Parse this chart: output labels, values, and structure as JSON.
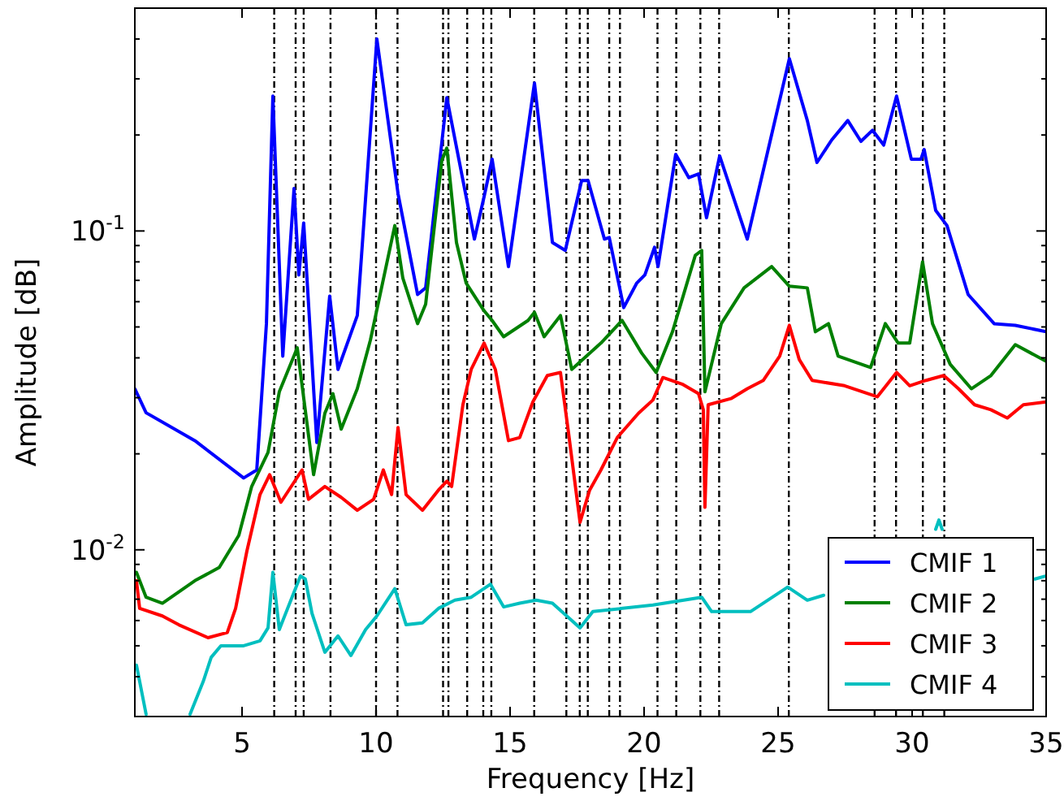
{
  "chart_data": {
    "type": "line",
    "xlabel": "Frequency [Hz]",
    "ylabel": "Amplitude [dB]",
    "log": "y",
    "grid": false,
    "legend": "bottom right",
    "line_style": "solid",
    "marker": "none",
    "xlim": [
      1,
      35
    ],
    "xticks": [
      5,
      10,
      15,
      20,
      25,
      30,
      35
    ],
    "ylim": [
      0.003,
      0.5
    ],
    "yticks": [
      {
        "value": 0.003,
        "label": null
      },
      {
        "value": 0.004,
        "label": null
      },
      {
        "value": 0.005,
        "label": null
      },
      {
        "value": 0.006,
        "label": null
      },
      {
        "value": 0.007,
        "label": null
      },
      {
        "value": 0.008,
        "label": null
      },
      {
        "value": 0.009,
        "label": null
      },
      {
        "value": 0.01,
        "label": "10$^{-2}$"
      },
      {
        "value": 0.02,
        "label": null
      },
      {
        "value": 0.03,
        "label": null
      },
      {
        "value": 0.04,
        "label": null
      },
      {
        "value": 0.05,
        "label": null
      },
      {
        "value": 0.06,
        "label": null
      },
      {
        "value": 0.07,
        "label": null
      },
      {
        "value": 0.08,
        "label": null
      },
      {
        "value": 0.09,
        "label": null
      },
      {
        "value": 0.1,
        "label": "10$^{-1}$"
      },
      {
        "value": 0.2,
        "label": null
      },
      {
        "value": 0.3,
        "label": null
      },
      {
        "value": 0.4,
        "label": null
      },
      {
        "value": 0.5,
        "label": null
      }
    ],
    "ref_lines": [
      {
        "axis": "x",
        "value": 6.2,
        "color": "#000000",
        "line_style": "dashed"
      },
      {
        "axis": "x",
        "value": 7.0,
        "color": "#000000",
        "line_style": "dashed"
      },
      {
        "axis": "x",
        "value": 7.3,
        "color": "#000000",
        "line_style": "dashed"
      },
      {
        "axis": "x",
        "value": 8.3,
        "color": "#000000",
        "line_style": "dashed"
      },
      {
        "axis": "x",
        "value": 10.0,
        "color": "#000000",
        "line_style": "dashed"
      },
      {
        "axis": "x",
        "value": 10.8,
        "color": "#000000",
        "line_style": "dashed"
      },
      {
        "axis": "x",
        "value": 12.5,
        "color": "#000000",
        "line_style": "dashed"
      },
      {
        "axis": "x",
        "value": 12.7,
        "color": "#000000",
        "line_style": "dashed"
      },
      {
        "axis": "x",
        "value": 13.4,
        "color": "#000000",
        "line_style": "dashed"
      },
      {
        "axis": "x",
        "value": 14.0,
        "color": "#000000",
        "line_style": "dashed"
      },
      {
        "axis": "x",
        "value": 14.3,
        "color": "#000000",
        "line_style": "dashed"
      },
      {
        "axis": "x",
        "value": 15.9,
        "color": "#000000",
        "line_style": "dashed"
      },
      {
        "axis": "x",
        "value": 17.1,
        "color": "#000000",
        "line_style": "dashed"
      },
      {
        "axis": "x",
        "value": 17.6,
        "color": "#000000",
        "line_style": "dashed"
      },
      {
        "axis": "x",
        "value": 17.9,
        "color": "#000000",
        "line_style": "dashed"
      },
      {
        "axis": "x",
        "value": 18.7,
        "color": "#000000",
        "line_style": "dashed"
      },
      {
        "axis": "x",
        "value": 19.1,
        "color": "#000000",
        "line_style": "dashed"
      },
      {
        "axis": "x",
        "value": 20.5,
        "color": "#000000",
        "line_style": "dashed"
      },
      {
        "axis": "x",
        "value": 21.2,
        "color": "#000000",
        "line_style": "dashed"
      },
      {
        "axis": "x",
        "value": 22.1,
        "color": "#000000",
        "line_style": "dashed"
      },
      {
        "axis": "x",
        "value": 22.8,
        "color": "#000000",
        "line_style": "dashed"
      },
      {
        "axis": "x",
        "value": 25.4,
        "color": "#000000",
        "line_style": "dashed"
      },
      {
        "axis": "x",
        "value": 28.6,
        "color": "#000000",
        "line_style": "dashed"
      },
      {
        "axis": "x",
        "value": 29.4,
        "color": "#000000",
        "line_style": "dashed"
      },
      {
        "axis": "x",
        "value": 30.4,
        "color": "#000000",
        "line_style": "dashed"
      },
      {
        "axis": "x",
        "value": 31.2,
        "color": "#000000",
        "line_style": "dashed"
      }
    ],
    "series": [
      {
        "name": "CMIF 1",
        "color": "#0000ff",
        "x": [
          1.0,
          1.42,
          3.24,
          5.06,
          5.55,
          5.91,
          6.15,
          6.52,
          6.94,
          7.12,
          7.3,
          7.79,
          8.27,
          8.58,
          9.3,
          10.03,
          10.82,
          11.55,
          11.85,
          12.64,
          13.67,
          14.03,
          14.33,
          14.94,
          15.91,
          16.58,
          17.06,
          17.67,
          17.91,
          18.52,
          18.7,
          19.24,
          19.73,
          20.03,
          20.39,
          20.52,
          21.18,
          21.67,
          22.03,
          22.33,
          22.82,
          23.85,
          25.42,
          26.09,
          26.45,
          27.0,
          27.6,
          28.09,
          28.52,
          28.94,
          29.42,
          29.97,
          30.33,
          30.45,
          30.88,
          31.3,
          32.09,
          33.06,
          33.85,
          35.0
        ],
        "values": [
          0.032,
          0.0269,
          0.022,
          0.0168,
          0.0178,
          0.0512,
          0.265,
          0.0405,
          0.136,
          0.0728,
          0.106,
          0.0217,
          0.0625,
          0.0368,
          0.0543,
          0.4,
          0.131,
          0.0632,
          0.0663,
          0.262,
          0.0943,
          0.128,
          0.168,
          0.0773,
          0.291,
          0.092,
          0.0869,
          0.144,
          0.144,
          0.0943,
          0.0954,
          0.0575,
          0.0687,
          0.0728,
          0.0889,
          0.0773,
          0.174,
          0.147,
          0.151,
          0.11,
          0.172,
          0.0943,
          0.347,
          0.222,
          0.164,
          0.193,
          0.222,
          0.191,
          0.207,
          0.186,
          0.265,
          0.168,
          0.168,
          0.18,
          0.116,
          0.104,
          0.0632,
          0.0512,
          0.0506,
          0.0483
        ]
      },
      {
        "name": "CMIF 2",
        "color": "#008000",
        "x": [
          1.06,
          1.42,
          2.03,
          3.24,
          4.15,
          4.88,
          5.36,
          5.97,
          6.39,
          7.06,
          7.67,
          8.09,
          8.39,
          8.7,
          9.3,
          9.79,
          10.7,
          11.0,
          11.55,
          11.85,
          12.45,
          12.64,
          13.0,
          13.36,
          14.03,
          14.33,
          14.76,
          15.67,
          15.91,
          16.27,
          16.88,
          17.3,
          18.39,
          19.18,
          19.91,
          20.45,
          21.06,
          21.91,
          22.15,
          22.27,
          22.88,
          23.73,
          24.76,
          25.42,
          26.09,
          26.39,
          26.88,
          27.24,
          28.45,
          29.0,
          29.48,
          29.91,
          30.39,
          30.76,
          31.42,
          32.21,
          32.94,
          33.85,
          35.0
        ],
        "values": [
          0.0085,
          0.0071,
          0.0068,
          0.008,
          0.0088,
          0.0111,
          0.0158,
          0.0202,
          0.0313,
          0.043,
          0.0172,
          0.0268,
          0.0309,
          0.0239,
          0.032,
          0.0455,
          0.104,
          0.0711,
          0.0512,
          0.0589,
          0.166,
          0.182,
          0.092,
          0.0687,
          0.0562,
          0.0524,
          0.0466,
          0.0524,
          0.0556,
          0.0466,
          0.0543,
          0.0368,
          0.0445,
          0.0524,
          0.0414,
          0.036,
          0.0483,
          0.0838,
          0.0869,
          0.0313,
          0.0512,
          0.0663,
          0.0773,
          0.0671,
          0.0663,
          0.0483,
          0.0512,
          0.0405,
          0.0373,
          0.0512,
          0.0445,
          0.0445,
          0.08,
          0.0512,
          0.0382,
          0.032,
          0.0352,
          0.044,
          0.039
        ]
      },
      {
        "name": "CMIF 3",
        "color": "#ff0000",
        "x": [
          1.06,
          1.18,
          2.03,
          2.64,
          3.73,
          4.45,
          4.76,
          5.18,
          5.67,
          6.03,
          6.45,
          7.24,
          7.48,
          8.09,
          8.7,
          9.3,
          9.91,
          10.27,
          10.58,
          10.82,
          11.12,
          11.73,
          12.33,
          12.64,
          12.82,
          13.24,
          13.55,
          14.03,
          14.45,
          14.94,
          15.36,
          15.85,
          16.39,
          16.88,
          17.18,
          17.61,
          17.97,
          18.39,
          19.0,
          19.79,
          20.33,
          20.7,
          21.42,
          22.03,
          22.21,
          22.27,
          22.39,
          23.24,
          23.85,
          24.45,
          25.06,
          25.42,
          25.79,
          26.27,
          27.48,
          28.7,
          29.42,
          29.91,
          30.52,
          31.18,
          31.73,
          32.33,
          32.94,
          33.55,
          34.15,
          35.0
        ],
        "values": [
          0.008,
          0.00655,
          0.0062,
          0.00582,
          0.0053,
          0.0055,
          0.00655,
          0.0099,
          0.0149,
          0.0172,
          0.0141,
          0.0178,
          0.0144,
          0.0158,
          0.0146,
          0.0133,
          0.0144,
          0.0178,
          0.0149,
          0.0242,
          0.0149,
          0.0133,
          0.0154,
          0.0164,
          0.0158,
          0.0285,
          0.0368,
          0.0445,
          0.0368,
          0.022,
          0.0225,
          0.0291,
          0.0352,
          0.036,
          0.0233,
          0.0122,
          0.0154,
          0.0178,
          0.0225,
          0.0268,
          0.0295,
          0.0347,
          0.0331,
          0.0309,
          0.0275,
          0.0136,
          0.0285,
          0.0298,
          0.032,
          0.034,
          0.0405,
          0.0506,
          0.0395,
          0.034,
          0.0327,
          0.0302,
          0.036,
          0.0327,
          0.034,
          0.0352,
          0.032,
          0.0285,
          0.0275,
          0.0259,
          0.0285,
          0.0291
        ]
      },
      {
        "name": "CMIF 4",
        "color": "#00bfbf",
        "x": [
          1.06,
          1.42,
          2.5,
          3.06,
          3.55,
          3.85,
          4.21,
          5.06,
          5.67,
          5.97,
          6.15,
          6.39,
          6.7,
          7.18,
          7.36,
          7.61,
          8.09,
          8.58,
          9.06,
          9.61,
          10.03,
          10.7,
          11.12,
          11.73,
          12.33,
          12.94,
          13.55,
          14.27,
          14.76,
          15.36,
          15.97,
          16.58,
          17.61,
          18.09,
          20.33,
          22.15,
          22.52,
          23.97,
          25.36,
          26.09,
          26.7,
          27.0,
          30.88,
          31.0,
          31.12,
          32.0,
          34.58,
          35.0
        ],
        "values": [
          0.00435,
          0.00305,
          null,
          0.00305,
          0.00386,
          0.0046,
          0.005,
          0.005,
          0.00518,
          0.00569,
          0.0085,
          0.00562,
          0.00655,
          0.00828,
          0.0081,
          0.00632,
          0.00477,
          0.00537,
          0.00466,
          0.00562,
          0.0062,
          0.00755,
          0.00582,
          0.0059,
          0.00655,
          0.00695,
          0.0071,
          0.0078,
          0.00662,
          0.0068,
          0.00695,
          0.0068,
          0.00569,
          0.0064,
          0.00671,
          0.0071,
          0.0064,
          0.0064,
          0.00764,
          0.00695,
          0.0072,
          null,
          0.0116,
          0.0124,
          0.0116,
          null,
          0.0081,
          0.00828
        ]
      }
    ]
  }
}
